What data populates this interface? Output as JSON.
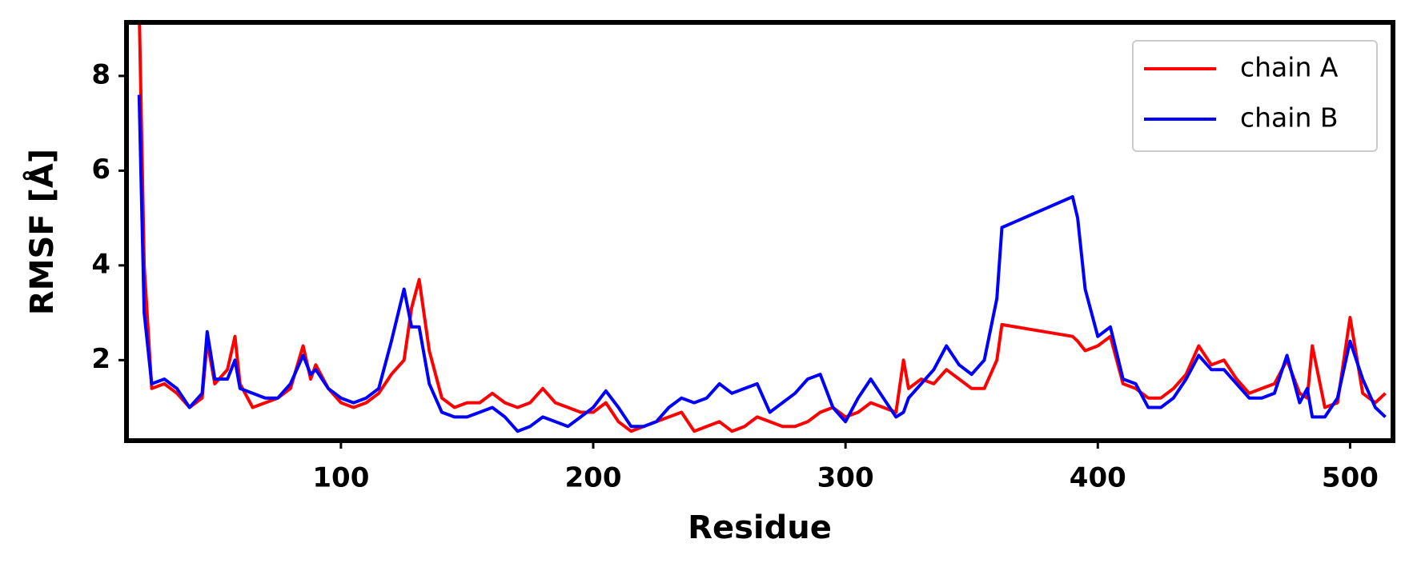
{
  "chart_data": {
    "type": "line",
    "xlabel": "Residue",
    "ylabel": "RMSF [Å]",
    "x": [
      20,
      22,
      25,
      30,
      35,
      40,
      45,
      47,
      50,
      55,
      58,
      60,
      65,
      70,
      75,
      80,
      85,
      88,
      90,
      95,
      100,
      105,
      110,
      115,
      120,
      125,
      128,
      131,
      135,
      140,
      145,
      150,
      155,
      160,
      165,
      170,
      175,
      180,
      185,
      190,
      195,
      200,
      205,
      210,
      215,
      220,
      225,
      230,
      235,
      240,
      245,
      250,
      255,
      260,
      265,
      270,
      275,
      280,
      285,
      290,
      295,
      300,
      305,
      310,
      315,
      320,
      323,
      325,
      330,
      335,
      340,
      345,
      350,
      355,
      360,
      362,
      390,
      392,
      395,
      400,
      405,
      410,
      415,
      420,
      425,
      430,
      435,
      440,
      445,
      450,
      455,
      460,
      465,
      470,
      475,
      480,
      483,
      485,
      490,
      495,
      500,
      505,
      510,
      514
    ],
    "series": [
      {
        "name": "chain A",
        "color": "#ff0000",
        "values": [
          9.5,
          4,
          1.4,
          1.5,
          1.3,
          1.0,
          1.2,
          2.4,
          1.5,
          1.8,
          2.5,
          1.5,
          1.0,
          1.1,
          1.2,
          1.4,
          2.3,
          1.6,
          1.9,
          1.4,
          1.1,
          1.0,
          1.1,
          1.3,
          1.7,
          2.0,
          3.1,
          3.7,
          2.2,
          1.2,
          1.0,
          1.1,
          1.1,
          1.3,
          1.1,
          1.0,
          1.1,
          1.4,
          1.1,
          1.0,
          0.9,
          0.9,
          1.1,
          0.7,
          0.5,
          0.6,
          0.7,
          0.8,
          0.9,
          0.5,
          0.6,
          0.7,
          0.5,
          0.6,
          0.8,
          0.7,
          0.6,
          0.6,
          0.7,
          0.9,
          1.0,
          0.8,
          0.9,
          1.1,
          1.0,
          0.9,
          2.0,
          1.4,
          1.6,
          1.5,
          1.8,
          1.6,
          1.4,
          1.4,
          2.0,
          2.75,
          2.5,
          2.4,
          2.2,
          2.3,
          2.5,
          1.5,
          1.4,
          1.2,
          1.2,
          1.4,
          1.7,
          2.3,
          1.9,
          2.0,
          1.6,
          1.3,
          1.4,
          1.5,
          2.0,
          1.3,
          1.2,
          2.3,
          1.0,
          1.1,
          2.9,
          1.3,
          1.1,
          1.3
        ]
      },
      {
        "name": "chain B",
        "color": "#0000ff",
        "values": [
          7.6,
          3.0,
          1.5,
          1.6,
          1.4,
          1.0,
          1.3,
          2.6,
          1.6,
          1.6,
          2.0,
          1.4,
          1.3,
          1.2,
          1.2,
          1.5,
          2.1,
          1.7,
          1.8,
          1.4,
          1.2,
          1.1,
          1.2,
          1.4,
          2.4,
          3.5,
          2.7,
          2.7,
          1.5,
          0.9,
          0.8,
          0.8,
          0.9,
          1.0,
          0.8,
          0.5,
          0.6,
          0.8,
          0.7,
          0.6,
          0.8,
          1.0,
          1.35,
          1.0,
          0.6,
          0.6,
          0.7,
          1.0,
          1.2,
          1.1,
          1.2,
          1.5,
          1.3,
          1.4,
          1.5,
          0.9,
          1.1,
          1.3,
          1.6,
          1.7,
          1.0,
          0.7,
          1.2,
          1.6,
          1.2,
          0.8,
          0.9,
          1.2,
          1.5,
          1.8,
          2.3,
          1.9,
          1.7,
          2.0,
          3.3,
          4.8,
          5.45,
          5.0,
          3.5,
          2.5,
          2.7,
          1.6,
          1.5,
          1.0,
          1.0,
          1.2,
          1.6,
          2.1,
          1.8,
          1.8,
          1.5,
          1.2,
          1.2,
          1.3,
          2.1,
          1.1,
          1.4,
          0.8,
          0.8,
          1.2,
          2.4,
          1.6,
          1.0,
          0.8
        ]
      }
    ],
    "xlim": [
      15,
      517
    ],
    "ylim": [
      0.3,
      9.13
    ],
    "xticks": [
      100,
      200,
      300,
      400,
      500
    ],
    "yticks": [
      2,
      4,
      6,
      8
    ],
    "grid": false,
    "legend": "upper right"
  }
}
